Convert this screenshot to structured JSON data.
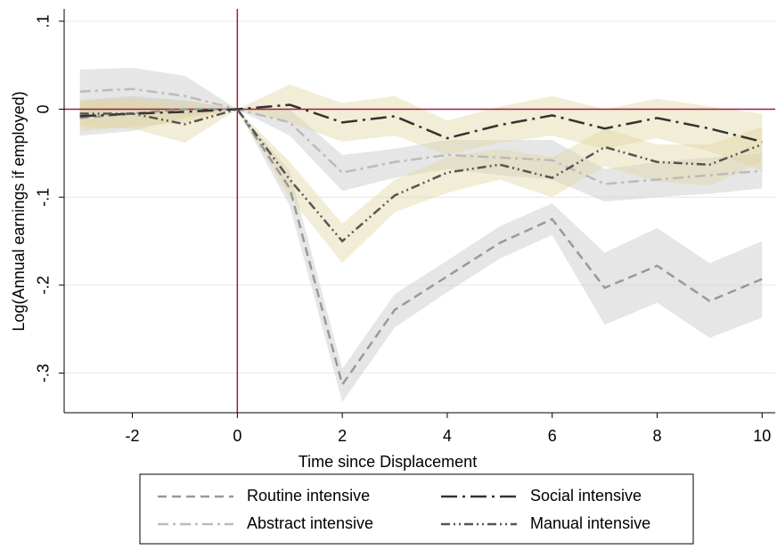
{
  "chart_data": {
    "type": "line",
    "x_label": "Time since Displacement",
    "y_label": "Log(Annual earnings if employed)",
    "x": [
      -3,
      -2,
      -1,
      0,
      1,
      2,
      3,
      4,
      5,
      6,
      7,
      8,
      9,
      10
    ],
    "xlim": [
      -3.3,
      10.25
    ],
    "xticks": [
      -2,
      0,
      2,
      4,
      6,
      8,
      10
    ],
    "ylim": [
      -0.345,
      0.114
    ],
    "yticks": [
      {
        "value": 0.1,
        "label": ".1"
      },
      0,
      {
        "value": -0.1,
        "label": "-.1"
      },
      {
        "value": -0.2,
        "label": "-.2"
      },
      {
        "value": -0.3,
        "label": "-.3"
      }
    ],
    "grid": true,
    "reference_lines": {
      "x": 0,
      "y": 0,
      "color": "#a01d3c"
    },
    "series": [
      {
        "name": "Routine intensive",
        "color": "#999999",
        "dash": "10,6",
        "band_color": "#c8c8c8",
        "values": [
          -0.01,
          -0.005,
          0.0,
          0,
          -0.09,
          -0.313,
          -0.228,
          -0.19,
          -0.152,
          -0.125,
          -0.203,
          -0.178,
          -0.218,
          -0.193
        ],
        "upper": [
          0.01,
          0.015,
          0.01,
          0,
          -0.07,
          -0.295,
          -0.21,
          -0.172,
          -0.133,
          -0.107,
          -0.163,
          -0.135,
          -0.175,
          -0.15
        ],
        "lower": [
          -0.03,
          -0.025,
          -0.01,
          0,
          -0.11,
          -0.333,
          -0.248,
          -0.208,
          -0.17,
          -0.143,
          -0.245,
          -0.22,
          -0.26,
          -0.237
        ]
      },
      {
        "name": "Abstract intensive",
        "color": "#bbbbbb",
        "dash": "12,5,3,5",
        "band_color": "#c8c8c8",
        "values": [
          0.02,
          0.023,
          0.015,
          0,
          -0.015,
          -0.072,
          -0.06,
          -0.052,
          -0.055,
          -0.058,
          -0.085,
          -0.08,
          -0.075,
          -0.07
        ],
        "upper": [
          0.045,
          0.047,
          0.038,
          0,
          0.0,
          -0.052,
          -0.045,
          -0.035,
          -0.035,
          -0.035,
          -0.068,
          -0.06,
          -0.055,
          -0.05
        ],
        "lower": [
          -0.005,
          0.0,
          -0.008,
          0,
          -0.03,
          -0.093,
          -0.078,
          -0.068,
          -0.075,
          -0.08,
          -0.105,
          -0.1,
          -0.096,
          -0.09
        ]
      },
      {
        "name": "Social intensive",
        "color": "#333333",
        "dash": "18,6,3,6",
        "band_color": "#e3d8a4",
        "values": [
          -0.008,
          -0.005,
          -0.003,
          0,
          0.005,
          -0.015,
          -0.008,
          -0.033,
          -0.018,
          -0.007,
          -0.022,
          -0.01,
          -0.022,
          -0.037
        ],
        "upper": [
          0.008,
          0.012,
          0.01,
          0,
          0.028,
          0.007,
          0.015,
          -0.013,
          0.003,
          0.015,
          0.0,
          0.012,
          0.003,
          -0.005
        ],
        "lower": [
          -0.025,
          -0.02,
          -0.015,
          0,
          -0.015,
          -0.037,
          -0.03,
          -0.052,
          -0.038,
          -0.03,
          -0.045,
          -0.033,
          -0.048,
          -0.07
        ]
      },
      {
        "name": "Manual intensive",
        "color": "#555555",
        "dash": "10,4,2,4,2,4",
        "band_color": "#e3d8a4",
        "values": [
          -0.005,
          -0.005,
          -0.017,
          0,
          -0.08,
          -0.15,
          -0.098,
          -0.072,
          -0.063,
          -0.078,
          -0.043,
          -0.06,
          -0.063,
          -0.04
        ],
        "upper": [
          0.01,
          0.012,
          0.0,
          0,
          -0.06,
          -0.13,
          -0.08,
          -0.055,
          -0.045,
          -0.055,
          -0.022,
          -0.04,
          -0.04,
          -0.02
        ],
        "lower": [
          -0.02,
          -0.022,
          -0.038,
          0,
          -0.1,
          -0.175,
          -0.117,
          -0.095,
          -0.08,
          -0.1,
          -0.065,
          -0.082,
          -0.087,
          -0.06
        ]
      }
    ]
  }
}
